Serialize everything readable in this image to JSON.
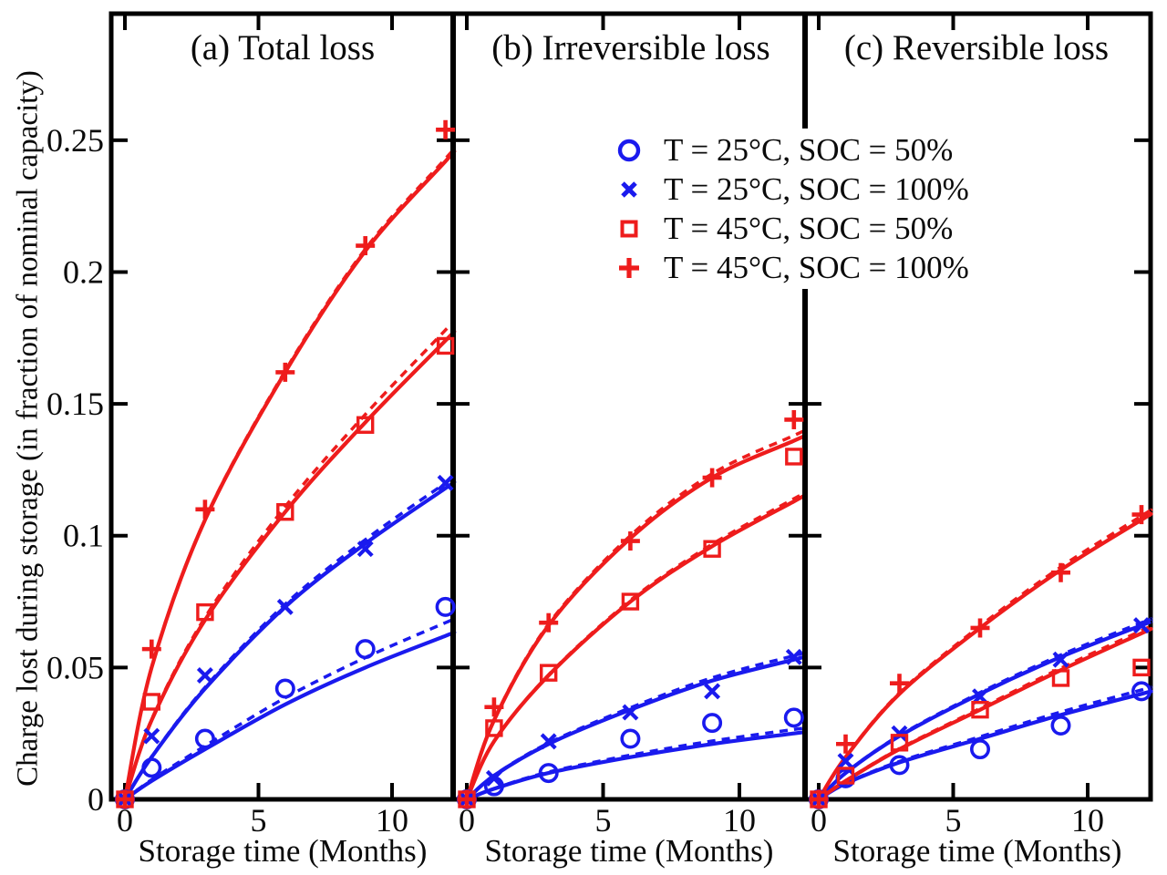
{
  "figure": {
    "kind": "three-panel scientific figure",
    "background": "#ffffff",
    "axis_color": "#000000"
  },
  "chart_data": {
    "type": "scatter",
    "ylabel": "Charge lost during storage (in fraction of nominal capacity)",
    "xlim": [
      -0.5,
      12.3
    ],
    "ylim": [
      0,
      0.298
    ],
    "xticks": [
      0,
      5,
      10
    ],
    "xtick_labels": [
      "0",
      "5",
      "10"
    ],
    "yticks": [
      0,
      0.05,
      0.1,
      0.15,
      0.2,
      0.25
    ],
    "ytick_labels": [
      "0",
      "0.05",
      "0.1",
      "0.15",
      "0.2",
      "0.25"
    ],
    "grid": false,
    "legend_position": "upper area spanning panels b and c, no frame",
    "months": [
      0,
      1,
      3,
      6,
      9,
      12
    ],
    "colors": {
      "blue": "#1a1aee",
      "red": "#ee1c1c"
    },
    "series": [
      {
        "id": "t25soc50",
        "label": "T = 25°C, SOC = 50%",
        "color": "#1a1aee",
        "marker": "circle"
      },
      {
        "id": "t25soc100",
        "label": "T = 25°C, SOC = 100%",
        "color": "#1a1aee",
        "marker": "x"
      },
      {
        "id": "t45soc50",
        "label": "T = 45°C, SOC = 50%",
        "color": "#ee1c1c",
        "marker": "square"
      },
      {
        "id": "t45soc100",
        "label": "T = 45°C, SOC = 100%",
        "color": "#ee1c1c",
        "marker": "plus"
      }
    ],
    "panels": [
      {
        "id": "a",
        "title": "(a) Total loss",
        "xlabel": "Storage time (Months)",
        "markers": {
          "t25soc50": [
            0,
            0.012,
            0.023,
            0.042,
            0.057,
            0.073
          ],
          "t25soc100": [
            0,
            0.024,
            0.047,
            0.073,
            0.095,
            0.12
          ],
          "t45soc50": [
            0,
            0.037,
            0.071,
            0.109,
            0.142,
            0.172
          ],
          "t45soc100": [
            0,
            0.057,
            0.11,
            0.162,
            0.21,
            0.254
          ]
        },
        "fit": {
          "t25soc50": [
            0,
            0.007,
            0.019,
            0.036,
            0.05,
            0.062
          ],
          "t25soc100": [
            0,
            0.016,
            0.042,
            0.073,
            0.097,
            0.118
          ],
          "t45soc50": [
            0,
            0.03,
            0.068,
            0.109,
            0.143,
            0.174
          ],
          "t45soc100": [
            0,
            0.05,
            0.106,
            0.162,
            0.208,
            0.242
          ]
        },
        "fit_dash_offset": {
          "t25soc50": 0.005,
          "t25soc100": 0.002,
          "t45soc50": 0.004,
          "t45soc100": 0.001
        }
      },
      {
        "id": "b",
        "title": "(b) Irreversible loss",
        "xlabel": "Storage time (Months)",
        "markers": {
          "t25soc50": [
            0,
            0.005,
            0.01,
            0.023,
            0.029,
            0.031
          ],
          "t25soc100": [
            0,
            0.008,
            0.022,
            0.033,
            0.041,
            0.054
          ],
          "t45soc50": [
            0,
            0.027,
            0.048,
            0.075,
            0.095,
            0.13
          ],
          "t45soc100": [
            0,
            0.035,
            0.067,
            0.098,
            0.122,
            0.144
          ]
        },
        "fit": {
          "t25soc50": [
            0,
            0.004,
            0.01,
            0.016,
            0.021,
            0.025
          ],
          "t25soc100": [
            0,
            0.009,
            0.021,
            0.034,
            0.045,
            0.053
          ],
          "t45soc50": [
            0,
            0.022,
            0.047,
            0.075,
            0.096,
            0.113
          ],
          "t45soc100": [
            0,
            0.03,
            0.066,
            0.099,
            0.122,
            0.136
          ]
        },
        "fit_dash_offset": {
          "t25soc50": 0.0015,
          "t25soc100": 0.0015,
          "t45soc50": 0.001,
          "t45soc100": 0.002
        }
      },
      {
        "id": "c",
        "title": "(c) Reversible loss",
        "xlabel": "Storage time (Months)",
        "markers": {
          "t25soc50": [
            0,
            0.008,
            0.013,
            0.019,
            0.028,
            0.041
          ],
          "t25soc100": [
            0,
            0.0145,
            0.025,
            0.039,
            0.053,
            0.066
          ],
          "t45soc50": [
            0,
            0.009,
            0.0215,
            0.034,
            0.046,
            0.05
          ],
          "t45soc100": [
            0,
            0.021,
            0.044,
            0.065,
            0.086,
            0.108
          ]
        },
        "fit": {
          "t25soc50": [
            0,
            0.006,
            0.014,
            0.023,
            0.032,
            0.04
          ],
          "t25soc100": [
            0,
            0.01,
            0.024,
            0.04,
            0.054,
            0.066
          ],
          "t45soc50": [
            0,
            0.007,
            0.019,
            0.034,
            0.049,
            0.063
          ],
          "t45soc100": [
            0,
            0.016,
            0.04,
            0.065,
            0.087,
            0.106
          ]
        },
        "fit_dash_offset": {
          "t25soc50": 0.0015,
          "t25soc100": 0.001,
          "t45soc50": 0.001,
          "t45soc100": 0.0015
        }
      }
    ]
  }
}
